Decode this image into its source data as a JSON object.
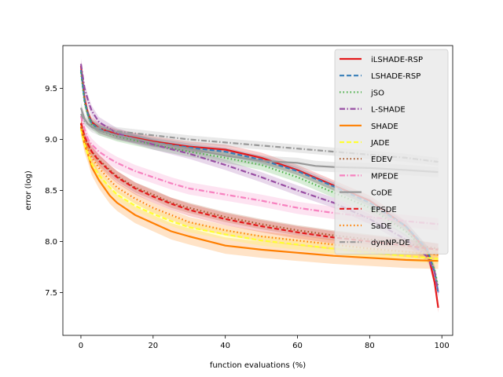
{
  "chart_data": {
    "type": "line",
    "title": "",
    "xlabel": "function evaluations (%)",
    "ylabel": "error (log)",
    "xlim": [
      -5,
      103
    ],
    "ylim": [
      7.08,
      9.92
    ],
    "xticks": [
      0,
      20,
      40,
      60,
      80,
      100
    ],
    "yticks": [
      7.5,
      8.0,
      8.5,
      9.0,
      9.5
    ],
    "xtick_labels": [
      "0",
      "20",
      "40",
      "60",
      "80",
      "100"
    ],
    "ytick_labels": [
      "7.5",
      "8.0",
      "8.5",
      "9.0",
      "9.5"
    ],
    "legend_position": "upper-right",
    "series": [
      {
        "name": "iLSHADE-RSP",
        "color": "#e41a1c",
        "dash": "solid",
        "band": 0.05,
        "x": [
          0,
          1,
          2,
          3,
          5,
          10,
          20,
          30,
          40,
          50,
          60,
          70,
          80,
          90,
          96,
          98,
          99
        ],
        "y": [
          9.72,
          9.4,
          9.25,
          9.17,
          9.11,
          9.05,
          8.98,
          8.93,
          8.9,
          8.82,
          8.7,
          8.55,
          8.4,
          8.15,
          7.9,
          7.6,
          7.35
        ]
      },
      {
        "name": "LSHADE-RSP",
        "color": "#377eb8",
        "dash": "6,3",
        "band": 0.04,
        "x": [
          0,
          1,
          2,
          3,
          5,
          10,
          20,
          30,
          40,
          50,
          60,
          70,
          80,
          90,
          96,
          98,
          99
        ],
        "y": [
          9.68,
          9.38,
          9.24,
          9.16,
          9.1,
          9.04,
          8.97,
          8.92,
          8.88,
          8.8,
          8.69,
          8.54,
          8.38,
          8.15,
          7.92,
          7.7,
          7.5
        ]
      },
      {
        "name": "jSO",
        "color": "#4daf4a",
        "dash": "1.5,3",
        "band": 0.05,
        "x": [
          0,
          1,
          2,
          3,
          5,
          10,
          20,
          30,
          40,
          50,
          60,
          70,
          80,
          90,
          96,
          98,
          99
        ],
        "y": [
          9.66,
          9.36,
          9.23,
          9.15,
          9.09,
          9.03,
          8.95,
          8.88,
          8.82,
          8.75,
          8.63,
          8.48,
          8.33,
          8.1,
          7.9,
          7.72,
          7.55
        ]
      },
      {
        "name": "L-SHADE",
        "color": "#984ea3",
        "dash": "7,2.5,1.5,2.5",
        "band": 0.05,
        "x": [
          0,
          1,
          2,
          3,
          5,
          10,
          20,
          30,
          40,
          50,
          60,
          70,
          80,
          90,
          96,
          98,
          99
        ],
        "y": [
          9.74,
          9.5,
          9.38,
          9.28,
          9.17,
          9.06,
          8.95,
          8.86,
          8.75,
          8.63,
          8.5,
          8.38,
          8.22,
          8.02,
          7.85,
          7.7,
          7.5
        ]
      },
      {
        "name": "SHADE",
        "color": "#ff7f00",
        "dash": "solid",
        "band": 0.08,
        "x": [
          0,
          1,
          2,
          3,
          5,
          8,
          10,
          15,
          20,
          25,
          30,
          40,
          50,
          60,
          70,
          80,
          90,
          99
        ],
        "y": [
          9.12,
          8.95,
          8.85,
          8.73,
          8.6,
          8.45,
          8.38,
          8.26,
          8.18,
          8.1,
          8.05,
          7.96,
          7.92,
          7.89,
          7.86,
          7.84,
          7.82,
          7.81
        ]
      },
      {
        "name": "JADE",
        "color": "#ffff33",
        "dash": "6,3",
        "band": 0.05,
        "x": [
          0,
          1,
          2,
          3,
          5,
          8,
          10,
          15,
          20,
          25,
          30,
          40,
          50,
          60,
          70,
          80,
          90,
          99
        ],
        "y": [
          9.1,
          8.95,
          8.85,
          8.76,
          8.65,
          8.53,
          8.46,
          8.35,
          8.27,
          8.2,
          8.14,
          8.07,
          8.01,
          7.97,
          7.93,
          7.89,
          7.86,
          7.83
        ]
      },
      {
        "name": "EDEV",
        "color": "#a65628",
        "dash": "1.5,3",
        "band": 0.05,
        "x": [
          0,
          1,
          2,
          3,
          5,
          8,
          10,
          15,
          20,
          25,
          30,
          40,
          50,
          60,
          70,
          80,
          90,
          99
        ],
        "y": [
          9.15,
          9.02,
          8.94,
          8.88,
          8.8,
          8.7,
          8.64,
          8.53,
          8.46,
          8.38,
          8.33,
          8.24,
          8.17,
          8.11,
          8.06,
          8.02,
          7.98,
          7.93
        ]
      },
      {
        "name": "MPEDE",
        "color": "#f781bf",
        "dash": "7,2.5,1.5,2.5",
        "band": 0.06,
        "x": [
          0,
          1,
          2,
          3,
          5,
          8,
          10,
          15,
          20,
          25,
          30,
          40,
          50,
          60,
          70,
          80,
          90,
          99
        ],
        "y": [
          9.23,
          9.1,
          9.0,
          8.95,
          8.88,
          8.81,
          8.77,
          8.69,
          8.63,
          8.57,
          8.52,
          8.46,
          8.4,
          8.33,
          8.28,
          8.24,
          8.2,
          8.17
        ]
      },
      {
        "name": "CoDE",
        "color": "#999999",
        "dash": "solid",
        "band": 0.05,
        "x": [
          0,
          1,
          2,
          3,
          5,
          10,
          20,
          30,
          40,
          50,
          60,
          65,
          70,
          80,
          90,
          99
        ],
        "y": [
          9.31,
          9.2,
          9.15,
          9.12,
          9.09,
          9.04,
          8.97,
          8.91,
          8.84,
          8.79,
          8.77,
          8.74,
          8.73,
          8.72,
          8.7,
          8.68
        ]
      },
      {
        "name": "EPSDE",
        "color": "#e41a1c",
        "dash": "6,3",
        "band": 0.06,
        "x": [
          0,
          1,
          2,
          3,
          5,
          8,
          10,
          15,
          20,
          25,
          30,
          40,
          50,
          60,
          70,
          80,
          90,
          99
        ],
        "y": [
          9.16,
          9.03,
          8.95,
          8.88,
          8.79,
          8.69,
          8.63,
          8.52,
          8.44,
          8.37,
          8.31,
          8.22,
          8.15,
          8.09,
          8.04,
          8.0,
          7.96,
          7.92
        ]
      },
      {
        "name": "SaDE",
        "color": "#ff7f00",
        "dash": "1.5,3",
        "band": 0.05,
        "x": [
          0,
          1,
          2,
          3,
          5,
          8,
          10,
          15,
          20,
          25,
          30,
          40,
          50,
          60,
          70,
          80,
          90,
          99
        ],
        "y": [
          9.13,
          8.99,
          8.9,
          8.82,
          8.72,
          8.6,
          8.53,
          8.42,
          8.33,
          8.26,
          8.19,
          8.11,
          8.05,
          8.01,
          7.97,
          7.93,
          7.9,
          7.87
        ]
      },
      {
        "name": "dynNP-DE",
        "color": "#999999",
        "dash": "7,2.5,1.5,2.5",
        "band": 0.04,
        "x": [
          0,
          1,
          2,
          3,
          5,
          10,
          20,
          30,
          40,
          50,
          60,
          70,
          80,
          90,
          99
        ],
        "y": [
          9.25,
          9.18,
          9.15,
          9.13,
          9.11,
          9.08,
          9.04,
          9.0,
          8.97,
          8.94,
          8.91,
          8.88,
          8.85,
          8.82,
          8.78
        ]
      }
    ]
  }
}
